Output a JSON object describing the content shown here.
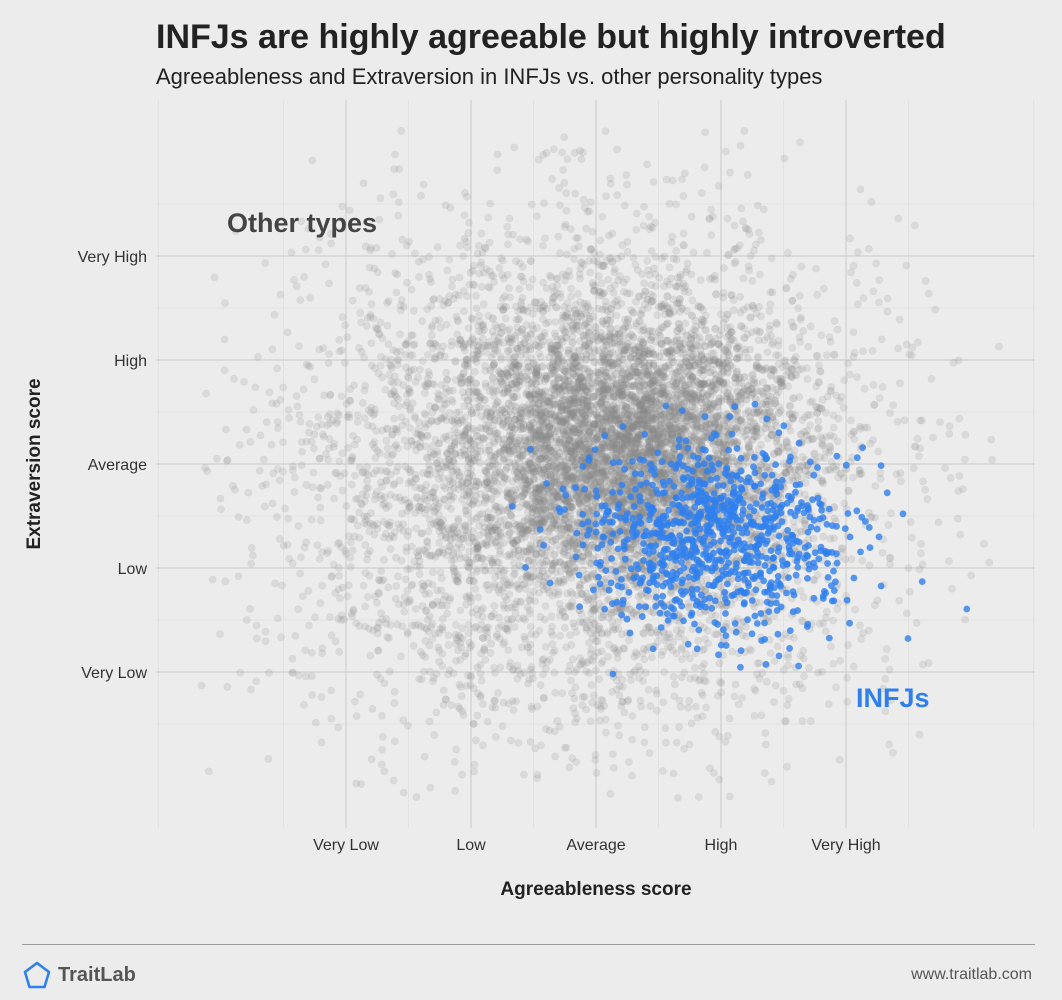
{
  "header": {
    "title": "INFJs are highly agreeable but highly introverted",
    "subtitle": "Agreeableness and Extraversion in INFJs vs. other personality types"
  },
  "chart_data": {
    "type": "scatter",
    "title": "INFJs are highly agreeable but highly introverted",
    "subtitle": "Agreeableness and Extraversion in INFJs vs. other personality types",
    "xlabel": "Agreeableness score",
    "ylabel": "Extraversion score",
    "x_ticks": [
      {
        "value": 1,
        "label": "Very Low"
      },
      {
        "value": 2,
        "label": "Low"
      },
      {
        "value": 3,
        "label": "Average"
      },
      {
        "value": 4,
        "label": "High"
      },
      {
        "value": 5,
        "label": "Very High"
      }
    ],
    "y_ticks": [
      {
        "value": 1,
        "label": "Very Low"
      },
      {
        "value": 2,
        "label": "Low"
      },
      {
        "value": 3,
        "label": "Average"
      },
      {
        "value": 4,
        "label": "High"
      },
      {
        "value": 5,
        "label": "Very High"
      }
    ],
    "xlim": [
      -0.5,
      6.5
    ],
    "ylim": [
      -0.5,
      6.5
    ],
    "grid": true,
    "legend": "none",
    "annotations": [
      {
        "text": "Other types",
        "series": "other"
      },
      {
        "text": "INFJs",
        "series": "infj"
      }
    ],
    "series": [
      {
        "name": "Other types",
        "color": "#888888",
        "opacity": 0.18,
        "distribution": {
          "x_center": 2.9,
          "y_center": 2.9,
          "x_spread": 1.15,
          "y_spread": 1.2
        }
      },
      {
        "name": "INFJs",
        "color": "#2f80ed",
        "opacity": 0.8,
        "distribution": {
          "x_center": 3.9,
          "y_center": 2.3,
          "x_spread": 0.55,
          "y_spread": 0.45
        }
      }
    ]
  },
  "footer": {
    "brand": "TraitLab",
    "website": "www.traitlab.com",
    "logo_icon": "pentagon-icon",
    "brand_color": "#2f80ed"
  }
}
